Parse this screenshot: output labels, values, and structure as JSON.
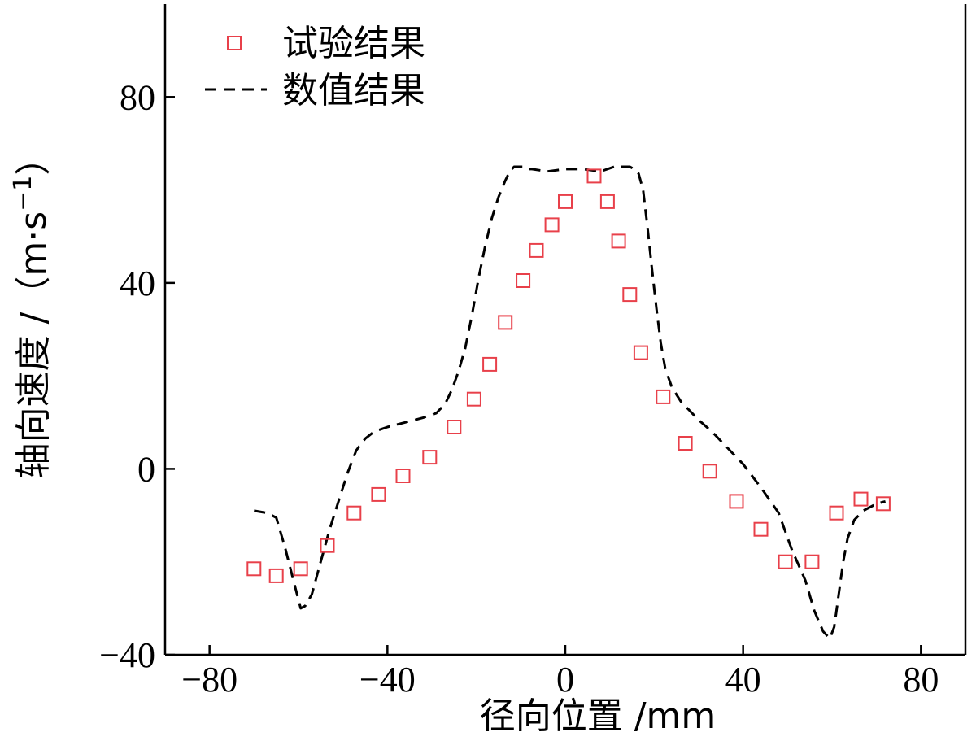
{
  "chart_data": {
    "type": "scatter",
    "xlabel": "径向位置 /mm",
    "ylabel": "轴向速度 /（m·s",
    "ylabel_sup": "−1",
    "ylabel_close": "）",
    "xlim": [
      -90,
      90
    ],
    "ylim": [
      -40,
      100
    ],
    "xticks": [
      {
        "value": -80,
        "label": "−80"
      },
      {
        "value": -40,
        "label": "−40"
      },
      {
        "value": 0,
        "label": "0"
      },
      {
        "value": 40,
        "label": "40"
      },
      {
        "value": 80,
        "label": "80"
      }
    ],
    "yticks": [
      {
        "value": -40,
        "label": "−40"
      },
      {
        "value": 0,
        "label": "0"
      },
      {
        "value": 40,
        "label": "40"
      },
      {
        "value": 80,
        "label": "80"
      }
    ],
    "grid": false,
    "legend_position": "top-left",
    "series": [
      {
        "name": "试验结果",
        "kind": "scatter",
        "marker": "square",
        "color": "#e8404a",
        "x": [
          -70,
          -65,
          -59.5,
          -53.5,
          -47.5,
          -42,
          -36.5,
          -30.5,
          -25,
          -20.5,
          -17,
          -13.5,
          -9.5,
          -6.5,
          -3,
          0,
          6.5,
          9.5,
          12,
          14.5,
          17,
          22,
          27,
          32.5,
          38.5,
          44,
          49.5,
          55.5,
          61,
          66.5,
          71.5
        ],
        "values": [
          -21.5,
          -23,
          -21.5,
          -16.5,
          -9.5,
          -5.5,
          -1.5,
          2.5,
          9,
          15,
          22.5,
          31.5,
          40.5,
          47,
          52.5,
          57.5,
          63,
          57.5,
          49,
          37.5,
          25,
          15.5,
          5.5,
          -0.5,
          -7,
          -13,
          -20,
          -20,
          -9.5,
          -6.5,
          -7.5
        ]
      },
      {
        "name": "数值结果",
        "kind": "line",
        "dash": true,
        "color": "#000000",
        "x": [
          -70,
          -67,
          -65,
          -63,
          -61,
          -59.5,
          -58.5,
          -57,
          -55,
          -53,
          -51,
          -49,
          -47,
          -45,
          -43,
          -40,
          -36,
          -32,
          -29,
          -27,
          -25.5,
          -24,
          -22.5,
          -21,
          -19.5,
          -18,
          -16.5,
          -15,
          -13.5,
          -12.5,
          -11.5,
          -10.5,
          -9.5,
          -8.5,
          -7.5,
          -4,
          0,
          4,
          8,
          11,
          13,
          14.5,
          15.5,
          16.5,
          17.5,
          18.5,
          19.5,
          20.5,
          21.5,
          22.5,
          24,
          26,
          28,
          30,
          33,
          36,
          40,
          44,
          48,
          51,
          54,
          56,
          58,
          59.5,
          60.5,
          61.5,
          62.5,
          63.5,
          65,
          67,
          70,
          72
        ],
        "values": [
          -9,
          -9.5,
          -10.5,
          -17,
          -24.5,
          -30,
          -29.5,
          -27,
          -20,
          -13,
          -7,
          -1,
          4,
          6.5,
          8,
          9,
          10,
          11,
          12,
          14,
          17,
          21,
          26,
          33,
          41,
          48,
          54,
          58.5,
          62,
          64,
          65,
          65,
          65,
          64.5,
          64.5,
          64,
          64.5,
          64.5,
          64,
          65,
          65,
          65,
          64.5,
          63.5,
          60,
          52,
          43,
          34.5,
          27,
          21.5,
          17.5,
          14.5,
          12.5,
          10.5,
          8,
          5,
          1,
          -4,
          -9.5,
          -17.5,
          -24,
          -30.5,
          -35,
          -36.5,
          -34,
          -27,
          -20,
          -15,
          -11,
          -9,
          -7.5,
          -7
        ]
      }
    ]
  }
}
